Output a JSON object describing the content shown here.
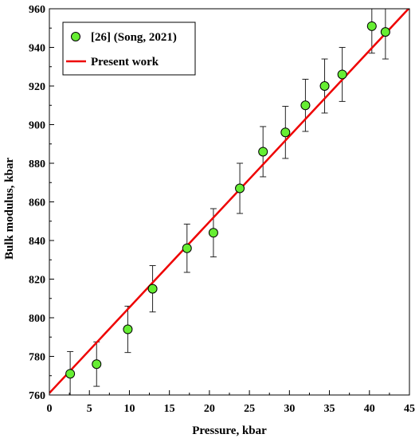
{
  "chart_data": {
    "type": "scatter",
    "title": "",
    "xlabel": "Pressure, kbar",
    "ylabel": "Bulk modulus, kbar",
    "xlim": [
      0,
      45
    ],
    "ylim": [
      760,
      960
    ],
    "xticks": [
      0,
      5,
      10,
      15,
      20,
      25,
      30,
      35,
      40,
      45
    ],
    "yticks": [
      760,
      780,
      800,
      820,
      840,
      860,
      880,
      900,
      920,
      940,
      960
    ],
    "grid": false,
    "legend_position": "top-left",
    "series": [
      {
        "name": "[26] (Song, 2021)",
        "type": "scatter",
        "color": "#66ee33",
        "edge_color": "#000000",
        "x": [
          2.6,
          5.9,
          9.8,
          12.9,
          17.2,
          20.5,
          23.8,
          26.7,
          29.5,
          32.0,
          34.4,
          36.6,
          40.3,
          42.0
        ],
        "y": [
          771,
          776,
          794,
          815,
          836,
          844,
          867,
          886,
          896,
          910,
          920,
          926,
          951,
          948
        ],
        "error": [
          11.5,
          11.5,
          12,
          12,
          12.5,
          12.5,
          13,
          13,
          13.5,
          13.5,
          14,
          14,
          14,
          14
        ]
      },
      {
        "name": "Present work",
        "type": "line",
        "color": "#ee0000",
        "x": [
          0,
          45
        ],
        "y": [
          761,
          960.5
        ]
      }
    ]
  }
}
